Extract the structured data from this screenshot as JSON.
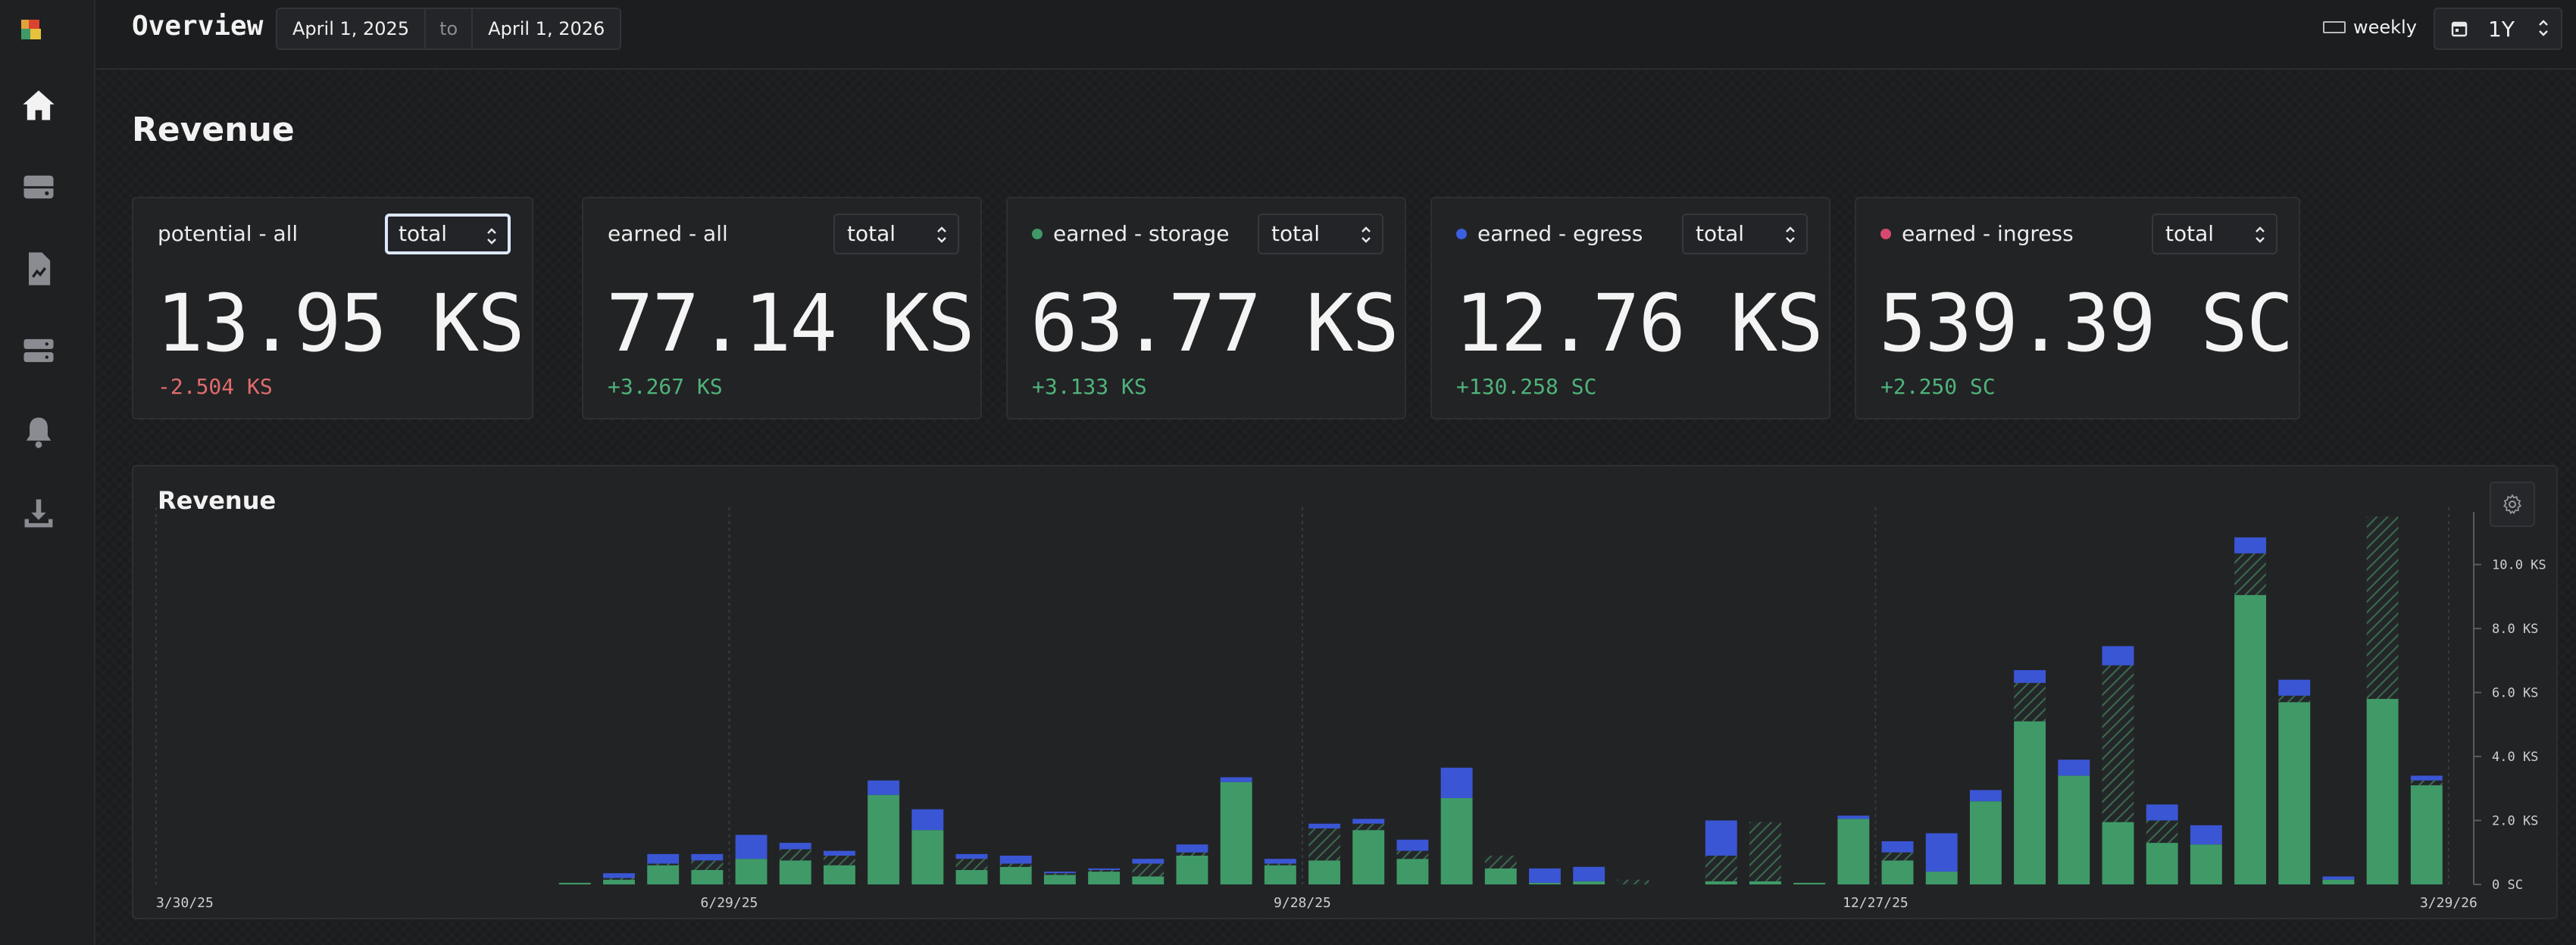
{
  "header": {
    "title": "Overview",
    "date_from": "April 1, 2025",
    "date_to_sep": "to",
    "date_to": "April 1, 2026",
    "interval": "weekly",
    "range": "1Y"
  },
  "sidebar": {
    "items": [
      {
        "name": "home"
      },
      {
        "name": "storage"
      },
      {
        "name": "reports"
      },
      {
        "name": "hosts"
      },
      {
        "name": "alerts"
      },
      {
        "name": "downloads"
      }
    ]
  },
  "section_title": "Revenue",
  "cards": [
    {
      "title": "potential - all",
      "select": "total",
      "value": "13.95 KS",
      "delta": "-2.504 KS",
      "delta_color": "#e06c6c",
      "dot": ""
    },
    {
      "title": "earned - all",
      "select": "total",
      "value": "77.14 KS",
      "delta": "+3.267 KS",
      "delta_color": "#4fb37a",
      "dot": ""
    },
    {
      "title": "earned - storage",
      "select": "total",
      "value": "63.77 KS",
      "delta": "+3.133 KS",
      "delta_color": "#4fb37a",
      "dot": "#3f9a68"
    },
    {
      "title": "earned - egress",
      "select": "total",
      "value": "12.76 KS",
      "delta": "+130.258 SC",
      "delta_color": "#4fb37a",
      "dot": "#3b5fe0"
    },
    {
      "title": "earned - ingress",
      "select": "total",
      "value": "539.39 SC",
      "delta": "+2.250 SC",
      "delta_color": "#4fb37a",
      "dot": "#d64a72"
    }
  ],
  "chart": {
    "title": "Revenue"
  },
  "chart_data": {
    "type": "bar",
    "stacked": true,
    "y_unit": "KS",
    "ylim": [
      0,
      11.6
    ],
    "y_ticks": [
      0,
      2,
      4,
      6,
      8,
      10
    ],
    "y_tick_labels": [
      "0 SC",
      "2.0 KS",
      "4.0 KS",
      "6.0 KS",
      "8.0 KS",
      "10.0 KS"
    ],
    "x_tick_labels": [
      {
        "label": "3/30/25",
        "week": 0
      },
      {
        "label": "6/29/25",
        "week": 13
      },
      {
        "label": "9/28/25",
        "week": 26
      },
      {
        "label": "12/27/25",
        "week": 39
      },
      {
        "label": "3/29/26",
        "week": 52
      }
    ],
    "series_colors": {
      "storage": "#3f9a68",
      "egress": "#3a56d4",
      "potential": "#3b6b4c"
    },
    "weeks": [
      {
        "week": 9.5,
        "storage": 0.05,
        "potential": 0,
        "egress": 0
      },
      {
        "week": 10.5,
        "storage": 0.15,
        "potential": 0.05,
        "egress": 0.15
      },
      {
        "week": 11.5,
        "storage": 0.6,
        "potential": 0.05,
        "egress": 0.3
      },
      {
        "week": 12.5,
        "storage": 0.45,
        "potential": 0.3,
        "egress": 0.2
      },
      {
        "week": 13.5,
        "storage": 0.8,
        "potential": 0,
        "egress": 0.75
      },
      {
        "week": 14.5,
        "storage": 0.75,
        "potential": 0.35,
        "egress": 0.2
      },
      {
        "week": 15.5,
        "storage": 0.6,
        "potential": 0.3,
        "egress": 0.15
      },
      {
        "week": 16.5,
        "storage": 2.8,
        "potential": 0,
        "egress": 0.45
      },
      {
        "week": 17.5,
        "storage": 1.7,
        "potential": 0,
        "egress": 0.65
      },
      {
        "week": 18.5,
        "storage": 0.45,
        "potential": 0.35,
        "egress": 0.15
      },
      {
        "week": 19.5,
        "storage": 0.55,
        "potential": 0.1,
        "egress": 0.25
      },
      {
        "week": 20.5,
        "storage": 0.3,
        "potential": 0.05,
        "egress": 0.05
      },
      {
        "week": 21.5,
        "storage": 0.4,
        "potential": 0.05,
        "egress": 0.05
      },
      {
        "week": 22.5,
        "storage": 0.25,
        "potential": 0.4,
        "egress": 0.15
      },
      {
        "week": 23.5,
        "storage": 0.9,
        "potential": 0.1,
        "egress": 0.25
      },
      {
        "week": 24.5,
        "storage": 3.2,
        "potential": 0,
        "egress": 0.15
      },
      {
        "week": 25.5,
        "storage": 0.6,
        "potential": 0.05,
        "egress": 0.15
      },
      {
        "week": 26.5,
        "storage": 0.75,
        "potential": 1.0,
        "egress": 0.15
      },
      {
        "week": 27.5,
        "storage": 1.7,
        "potential": 0.2,
        "egress": 0.15
      },
      {
        "week": 28.5,
        "storage": 0.8,
        "potential": 0.25,
        "egress": 0.35
      },
      {
        "week": 29.5,
        "storage": 2.7,
        "potential": 0,
        "egress": 0.95
      },
      {
        "week": 30.5,
        "storage": 0.5,
        "potential": 0.4,
        "egress": 0
      },
      {
        "week": 31.5,
        "storage": 0.05,
        "potential": 0,
        "egress": 0.45
      },
      {
        "week": 32.5,
        "storage": 0.1,
        "potential": 0,
        "egress": 0.45
      },
      {
        "week": 33.5,
        "storage": 0,
        "potential": 0.15,
        "egress": 0
      },
      {
        "week": 35.5,
        "storage": 0.1,
        "potential": 0.8,
        "egress": 1.1
      },
      {
        "week": 36.5,
        "storage": 0.1,
        "potential": 1.85,
        "egress": 0
      },
      {
        "week": 37.5,
        "storage": 0.05,
        "potential": 0,
        "egress": 0
      },
      {
        "week": 38.5,
        "storage": 2.05,
        "potential": 0,
        "egress": 0.1
      },
      {
        "week": 39.5,
        "storage": 0.75,
        "potential": 0.25,
        "egress": 0.35
      },
      {
        "week": 40.5,
        "storage": 0.4,
        "potential": 0,
        "egress": 1.2
      },
      {
        "week": 41.5,
        "storage": 2.6,
        "potential": 0,
        "egress": 0.35
      },
      {
        "week": 42.5,
        "storage": 5.1,
        "potential": 1.2,
        "egress": 0.4
      },
      {
        "week": 43.5,
        "storage": 3.4,
        "potential": 0,
        "egress": 0.5
      },
      {
        "week": 44.5,
        "storage": 1.95,
        "potential": 4.9,
        "egress": 0.6
      },
      {
        "week": 45.5,
        "storage": 1.3,
        "potential": 0.7,
        "egress": 0.5
      },
      {
        "week": 46.5,
        "storage": 1.25,
        "potential": 0,
        "egress": 0.6
      },
      {
        "week": 47.5,
        "storage": 9.05,
        "potential": 1.3,
        "egress": 0.5
      },
      {
        "week": 48.5,
        "storage": 5.7,
        "potential": 0.2,
        "egress": 0.5
      },
      {
        "week": 49.5,
        "storage": 0.15,
        "potential": 0,
        "egress": 0.1
      },
      {
        "week": 50.5,
        "storage": 5.8,
        "potential": 5.7,
        "egress": 0
      },
      {
        "week": 51.5,
        "storage": 3.1,
        "potential": 0.15,
        "egress": 0.15
      }
    ]
  }
}
